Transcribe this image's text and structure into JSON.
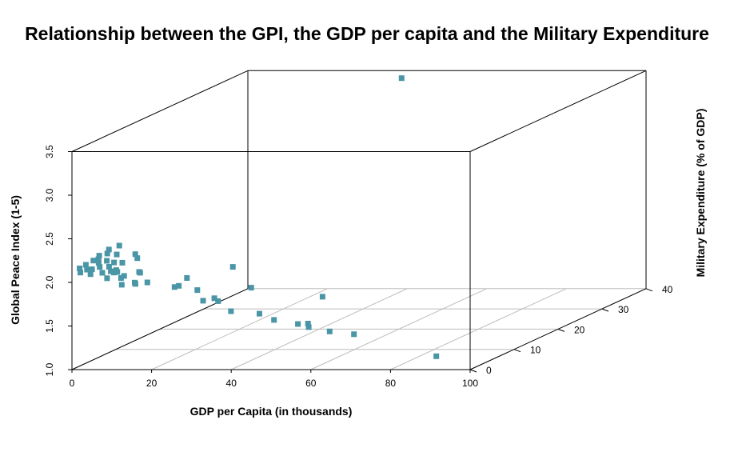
{
  "chart_data": {
    "type": "scatter3d",
    "title": "Relationship between the GPI, the GDP per capita and the Military Expenditure",
    "xlabel": "GDP per Capita (in thousands)",
    "ylabel": "Military Expenditure (% of GDP)",
    "zlabel": "Global Peace Index (1-5)",
    "xlim": [
      0,
      100
    ],
    "ylim": [
      0,
      40
    ],
    "zlim": [
      1.0,
      3.5
    ],
    "x_ticks": [
      "0",
      "20",
      "40",
      "60",
      "80",
      "100"
    ],
    "y_ticks": [
      "0",
      "10",
      "20",
      "30",
      "40"
    ],
    "z_ticks": [
      "1.0",
      "1.5",
      "2.0",
      "2.5",
      "3.0",
      "3.5"
    ],
    "point_color": "#4a95a6",
    "points": [
      {
        "x": 0.5,
        "y": 1.3,
        "z": 2.13
      },
      {
        "x": 1.0,
        "y": 1.0,
        "z": 2.09
      },
      {
        "x": 1.5,
        "y": 1.8,
        "z": 2.16
      },
      {
        "x": 2.0,
        "y": 1.6,
        "z": 2.11
      },
      {
        "x": 2.5,
        "y": 2.6,
        "z": 2.19
      },
      {
        "x": 3.0,
        "y": 1.5,
        "z": 2.06
      },
      {
        "x": 3.2,
        "y": 3.3,
        "z": 2.23
      },
      {
        "x": 3.6,
        "y": 1.3,
        "z": 2.12
      },
      {
        "x": 4.0,
        "y": 2.4,
        "z": 2.21
      },
      {
        "x": 4.2,
        "y": 4.6,
        "z": 2.27
      },
      {
        "x": 4.6,
        "y": 1.9,
        "z": 2.18
      },
      {
        "x": 5.0,
        "y": 3.5,
        "z": 2.25
      },
      {
        "x": 5.2,
        "y": 1.6,
        "z": 2.14
      },
      {
        "x": 5.6,
        "y": 5.7,
        "z": 2.29
      },
      {
        "x": 6.0,
        "y": 2.5,
        "z": 2.19
      },
      {
        "x": 6.2,
        "y": 1.3,
        "z": 2.08
      },
      {
        "x": 6.5,
        "y": 4.3,
        "z": 2.22
      },
      {
        "x": 7.0,
        "y": 2.1,
        "z": 2.13
      },
      {
        "x": 7.5,
        "y": 1.2,
        "z": 2.02
      },
      {
        "x": 7.8,
        "y": 2.5,
        "z": 2.17
      },
      {
        "x": 8.0,
        "y": 1.6,
        "z": 2.09
      },
      {
        "x": 8.7,
        "y": 2.2,
        "z": 2.09
      },
      {
        "x": 9.0,
        "y": 1.4,
        "z": 2.08
      },
      {
        "x": 9.5,
        "y": 1.7,
        "z": 2.08
      },
      {
        "x": 10.0,
        "y": 2.4,
        "z": 2.17
      },
      {
        "x": 10.5,
        "y": 4.9,
        "z": 2.21
      },
      {
        "x": 10.9,
        "y": 1.3,
        "z": 2.02
      },
      {
        "x": 11.0,
        "y": 1.9,
        "z": 2.03
      },
      {
        "x": 11.4,
        "y": 1.0,
        "z": 1.95
      },
      {
        "x": 12.2,
        "y": 3.8,
        "z": 2.19
      },
      {
        "x": 14.0,
        "y": 1.6,
        "z": 1.96
      },
      {
        "x": 14.0,
        "y": 2.6,
        "z": 2.06
      },
      {
        "x": 14.4,
        "y": 1.4,
        "z": 1.95
      },
      {
        "x": 14.7,
        "y": 2.2,
        "z": 2.06
      },
      {
        "x": 17.5,
        "y": 1.3,
        "z": 1.97
      },
      {
        "x": 24.0,
        "y": 1.6,
        "z": 1.91
      },
      {
        "x": 25.4,
        "y": 1.3,
        "z": 1.93
      },
      {
        "x": 26.0,
        "y": 2.6,
        "z": 1.99
      },
      {
        "x": 29.5,
        "y": 1.8,
        "z": 1.87
      },
      {
        "x": 31.5,
        "y": 1.3,
        "z": 1.76
      },
      {
        "x": 33.0,
        "y": 2.5,
        "z": 1.76
      },
      {
        "x": 35.5,
        "y": 1.1,
        "z": 1.76
      },
      {
        "x": 36.2,
        "y": 3.8,
        "z": 2.09
      },
      {
        "x": 39.5,
        "y": 0.4,
        "z": 1.66
      },
      {
        "x": 41.7,
        "y": 3.0,
        "z": 1.87
      },
      {
        "x": 42.7,
        "y": 36.3,
        "z": 3.5
      },
      {
        "x": 46.1,
        "y": 0.9,
        "z": 1.62
      },
      {
        "x": 49.3,
        "y": 1.3,
        "z": 1.54
      },
      {
        "x": 55.2,
        "y": 1.4,
        "z": 1.49
      },
      {
        "x": 57.7,
        "y": 1.6,
        "z": 1.45
      },
      {
        "x": 57.4,
        "y": 5.0,
        "z": 1.72
      },
      {
        "x": 57.5,
        "y": 1.6,
        "z": 1.49
      },
      {
        "x": 63.4,
        "y": 1.2,
        "z": 1.41
      },
      {
        "x": 69.6,
        "y": 1.1,
        "z": 1.38
      },
      {
        "x": 90.4,
        "y": 1.0,
        "z": 1.13
      }
    ]
  }
}
